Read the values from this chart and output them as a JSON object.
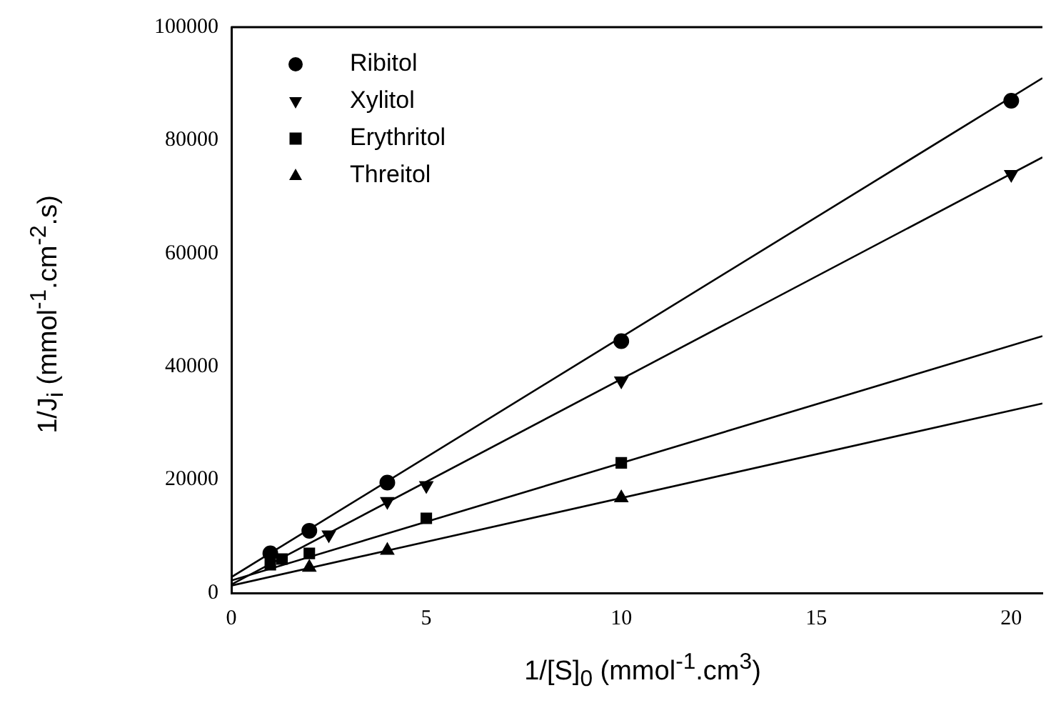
{
  "chart_data": {
    "type": "scatter",
    "xlabel": "1/[S]$_{0}$ (mmol$^{-1}$.cm$^{3}$)",
    "ylabel": "1/J$_{i}$ (mmol$^{-1}$.cm$^{-2}$.s)",
    "xlim": [
      0,
      20.8
    ],
    "xticks": [
      0,
      5,
      10,
      15,
      20
    ],
    "ylim": [
      0,
      100000
    ],
    "yticks": [
      0,
      20000,
      40000,
      60000,
      80000,
      100000
    ],
    "grid": false,
    "legend": "top left",
    "series": [
      {
        "name": "Ribitol",
        "color": "#000000",
        "marker": "circle",
        "x": [
          1,
          2,
          4,
          10,
          20
        ],
        "values": [
          7000,
          11000,
          19500,
          44500,
          87000
        ]
      },
      {
        "name": "Xylitol",
        "color": "#000000",
        "marker": "triangle-down",
        "x": [
          2.5,
          4,
          5,
          10,
          20
        ],
        "values": [
          10300,
          16200,
          19000,
          37500,
          74000
        ]
      },
      {
        "name": "Erythritol",
        "color": "#000000",
        "marker": "square",
        "x": [
          1,
          1.3,
          2,
          5,
          10
        ],
        "values": [
          5000,
          6000,
          7000,
          13200,
          23000
        ]
      },
      {
        "name": "Threitol",
        "color": "#000000",
        "marker": "triangle",
        "x": [
          2,
          4,
          10
        ],
        "values": [
          4500,
          7500,
          16800
        ]
      },
      {
        "type": "line",
        "color": "#000000",
        "marker": "none",
        "x": [
          0,
          20.8
        ],
        "values": [
          2800,
          91000
        ]
      },
      {
        "type": "line",
        "color": "#000000",
        "marker": "none",
        "x": [
          0,
          20.8
        ],
        "values": [
          1500,
          77000
        ]
      },
      {
        "type": "line",
        "color": "#000000",
        "marker": "none",
        "x": [
          0,
          20.8
        ],
        "values": [
          2200,
          45400
        ]
      },
      {
        "type": "line",
        "color": "#000000",
        "marker": "none",
        "x": [
          0,
          20.8
        ],
        "values": [
          1300,
          33500
        ]
      }
    ]
  }
}
